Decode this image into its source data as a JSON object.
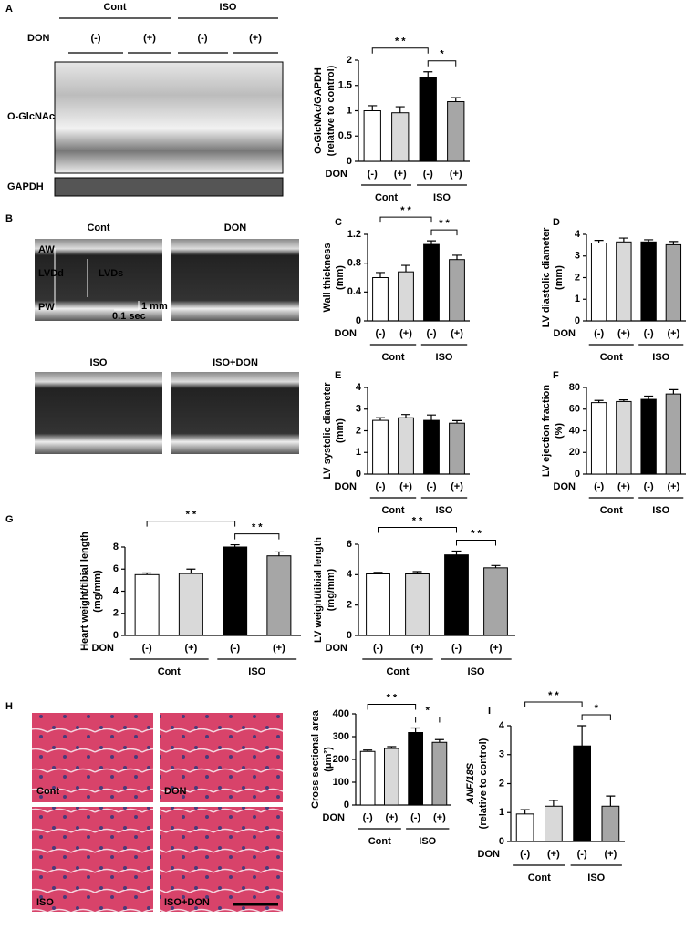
{
  "panels": {
    "panel_letters": [
      "A",
      "B",
      "C",
      "D",
      "E",
      "F",
      "G",
      "H",
      "I"
    ],
    "blot": {
      "groups": [
        "Cont",
        "ISO"
      ],
      "factor": "DON",
      "conditions": [
        "(-)",
        "(+)",
        "(-)",
        "(+)"
      ],
      "bands": [
        "O-GlcNAc",
        "GAPDH"
      ]
    },
    "echo": {
      "images": [
        "Cont",
        "DON",
        "ISO",
        "ISO+DON"
      ],
      "labels": [
        "AW",
        "LVDd",
        "LVDs",
        "PW"
      ],
      "scale": [
        "1 mm",
        "0.1 sec"
      ]
    },
    "histology": {
      "images": [
        "Cont",
        "DON",
        "ISO",
        "ISO+DON"
      ]
    }
  },
  "chart_data": [
    {
      "type": "bar",
      "ylabel": [
        "O-GlcNAc/GAPDH",
        "(relative to control)"
      ],
      "ylim": [
        0,
        2
      ],
      "yticks": [
        0,
        0.5,
        1,
        1.5,
        2
      ],
      "categories": [
        "(-)",
        "(+)",
        "(-)",
        "(+)"
      ],
      "factor_label": "DON",
      "groups": [
        "Cont",
        "ISO"
      ],
      "values": [
        1.0,
        0.96,
        1.65,
        1.18
      ],
      "errors": [
        0.1,
        0.12,
        0.12,
        0.08
      ],
      "colors": [
        "#ffffff",
        "#d9d9d9",
        "#000000",
        "#a6a6a6"
      ],
      "annotations": [
        {
          "text": "* *",
          "from": 0,
          "to": 2
        },
        {
          "text": "*",
          "from": 2,
          "to": 3
        }
      ]
    },
    {
      "type": "bar",
      "ylabel": [
        "Wall thickness",
        "(mm)"
      ],
      "ylim": [
        0,
        1.2
      ],
      "yticks": [
        0,
        0.4,
        0.8,
        1.2
      ],
      "categories": [
        "(-)",
        "(+)",
        "(-)",
        "(+)"
      ],
      "factor_label": "DON",
      "groups": [
        "Cont",
        "ISO"
      ],
      "values": [
        0.6,
        0.68,
        1.06,
        0.85
      ],
      "errors": [
        0.07,
        0.09,
        0.05,
        0.06
      ],
      "colors": [
        "#ffffff",
        "#d9d9d9",
        "#000000",
        "#a6a6a6"
      ],
      "annotations": [
        {
          "text": "* *",
          "from": 0,
          "to": 2
        },
        {
          "text": "* *",
          "from": 2,
          "to": 3
        }
      ]
    },
    {
      "type": "bar",
      "ylabel": [
        "LV diastolic diameter",
        "(mm)"
      ],
      "ylim": [
        0,
        4
      ],
      "yticks": [
        0,
        1,
        2,
        3,
        4
      ],
      "categories": [
        "(-)",
        "(+)",
        "(-)",
        "(+)"
      ],
      "factor_label": "DON",
      "groups": [
        "Cont",
        "ISO"
      ],
      "values": [
        3.6,
        3.65,
        3.65,
        3.52
      ],
      "errors": [
        0.12,
        0.18,
        0.1,
        0.15
      ],
      "colors": [
        "#ffffff",
        "#d9d9d9",
        "#000000",
        "#a6a6a6"
      ],
      "annotations": []
    },
    {
      "type": "bar",
      "ylabel": [
        "LV systolic diameter",
        "(mm)"
      ],
      "ylim": [
        0,
        4
      ],
      "yticks": [
        0,
        1,
        2,
        3,
        4
      ],
      "categories": [
        "(-)",
        "(+)",
        "(-)",
        "(+)"
      ],
      "factor_label": "DON",
      "groups": [
        "Cont",
        "ISO"
      ],
      "values": [
        2.48,
        2.6,
        2.48,
        2.35
      ],
      "errors": [
        0.12,
        0.15,
        0.25,
        0.12
      ],
      "colors": [
        "#ffffff",
        "#d9d9d9",
        "#000000",
        "#a6a6a6"
      ],
      "annotations": []
    },
    {
      "type": "bar",
      "ylabel": [
        "LV ejection fraction",
        "(%)"
      ],
      "ylim": [
        0,
        80
      ],
      "yticks": [
        0,
        20,
        40,
        60,
        80
      ],
      "categories": [
        "(-)",
        "(+)",
        "(-)",
        "(+)"
      ],
      "factor_label": "DON",
      "groups": [
        "Cont",
        "ISO"
      ],
      "values": [
        66,
        67,
        69,
        74
      ],
      "errors": [
        2,
        1.5,
        3,
        4
      ],
      "colors": [
        "#ffffff",
        "#d9d9d9",
        "#000000",
        "#a6a6a6"
      ],
      "annotations": []
    },
    {
      "type": "bar",
      "ylabel": [
        "Heart weight/tibial length",
        "(mg/mm)"
      ],
      "ylim": [
        0,
        8
      ],
      "yticks": [
        0,
        2,
        4,
        6,
        8
      ],
      "categories": [
        "(-)",
        "(+)",
        "(-)",
        "(+)"
      ],
      "factor_label": "DON",
      "groups": [
        "Cont",
        "ISO"
      ],
      "values": [
        5.5,
        5.6,
        8.0,
        7.2
      ],
      "errors": [
        0.15,
        0.4,
        0.2,
        0.35
      ],
      "colors": [
        "#ffffff",
        "#d9d9d9",
        "#000000",
        "#a6a6a6"
      ],
      "annotations": [
        {
          "text": "* *",
          "from": 0,
          "to": 2
        },
        {
          "text": "* *",
          "from": 2,
          "to": 3
        }
      ]
    },
    {
      "type": "bar",
      "ylabel": [
        "LV weight/tibial length",
        "(mg/mm)"
      ],
      "ylim": [
        0,
        6
      ],
      "yticks": [
        0,
        2,
        4,
        6
      ],
      "categories": [
        "(-)",
        "(+)",
        "(-)",
        "(+)"
      ],
      "factor_label": "DON",
      "groups": [
        "Cont",
        "ISO"
      ],
      "values": [
        4.05,
        4.05,
        5.3,
        4.45
      ],
      "errors": [
        0.1,
        0.15,
        0.25,
        0.15
      ],
      "colors": [
        "#ffffff",
        "#d9d9d9",
        "#000000",
        "#a6a6a6"
      ],
      "annotations": [
        {
          "text": "* *",
          "from": 0,
          "to": 2
        },
        {
          "text": "* *",
          "from": 2,
          "to": 3
        }
      ]
    },
    {
      "type": "bar",
      "ylabel": [
        "Cross sectional area",
        "(μm²)"
      ],
      "ylim": [
        0,
        400
      ],
      "yticks": [
        0,
        100,
        200,
        300,
        400
      ],
      "categories": [
        "(-)",
        "(+)",
        "(-)",
        "(+)"
      ],
      "factor_label": "DON",
      "groups": [
        "Cont",
        "ISO"
      ],
      "values": [
        235,
        248,
        318,
        275
      ],
      "errors": [
        6,
        8,
        20,
        12
      ],
      "colors": [
        "#ffffff",
        "#d9d9d9",
        "#000000",
        "#a6a6a6"
      ],
      "annotations": [
        {
          "text": "* *",
          "from": 0,
          "to": 2
        },
        {
          "text": "*",
          "from": 2,
          "to": 3
        }
      ]
    },
    {
      "type": "bar",
      "ylabel": [
        "ANF/18S",
        "(relative to control)"
      ],
      "ylim": [
        0,
        4
      ],
      "yticks": [
        0,
        1,
        2,
        3,
        4
      ],
      "categories": [
        "(-)",
        "(+)",
        "(-)",
        "(+)"
      ],
      "factor_label": "DON",
      "groups": [
        "Cont",
        "ISO"
      ],
      "values": [
        0.95,
        1.22,
        3.3,
        1.22
      ],
      "errors": [
        0.15,
        0.2,
        0.7,
        0.35
      ],
      "colors": [
        "#ffffff",
        "#d9d9d9",
        "#000000",
        "#a6a6a6"
      ],
      "annotations": [
        {
          "text": "* *",
          "from": 0,
          "to": 2
        },
        {
          "text": "*",
          "from": 2,
          "to": 3
        }
      ]
    }
  ]
}
